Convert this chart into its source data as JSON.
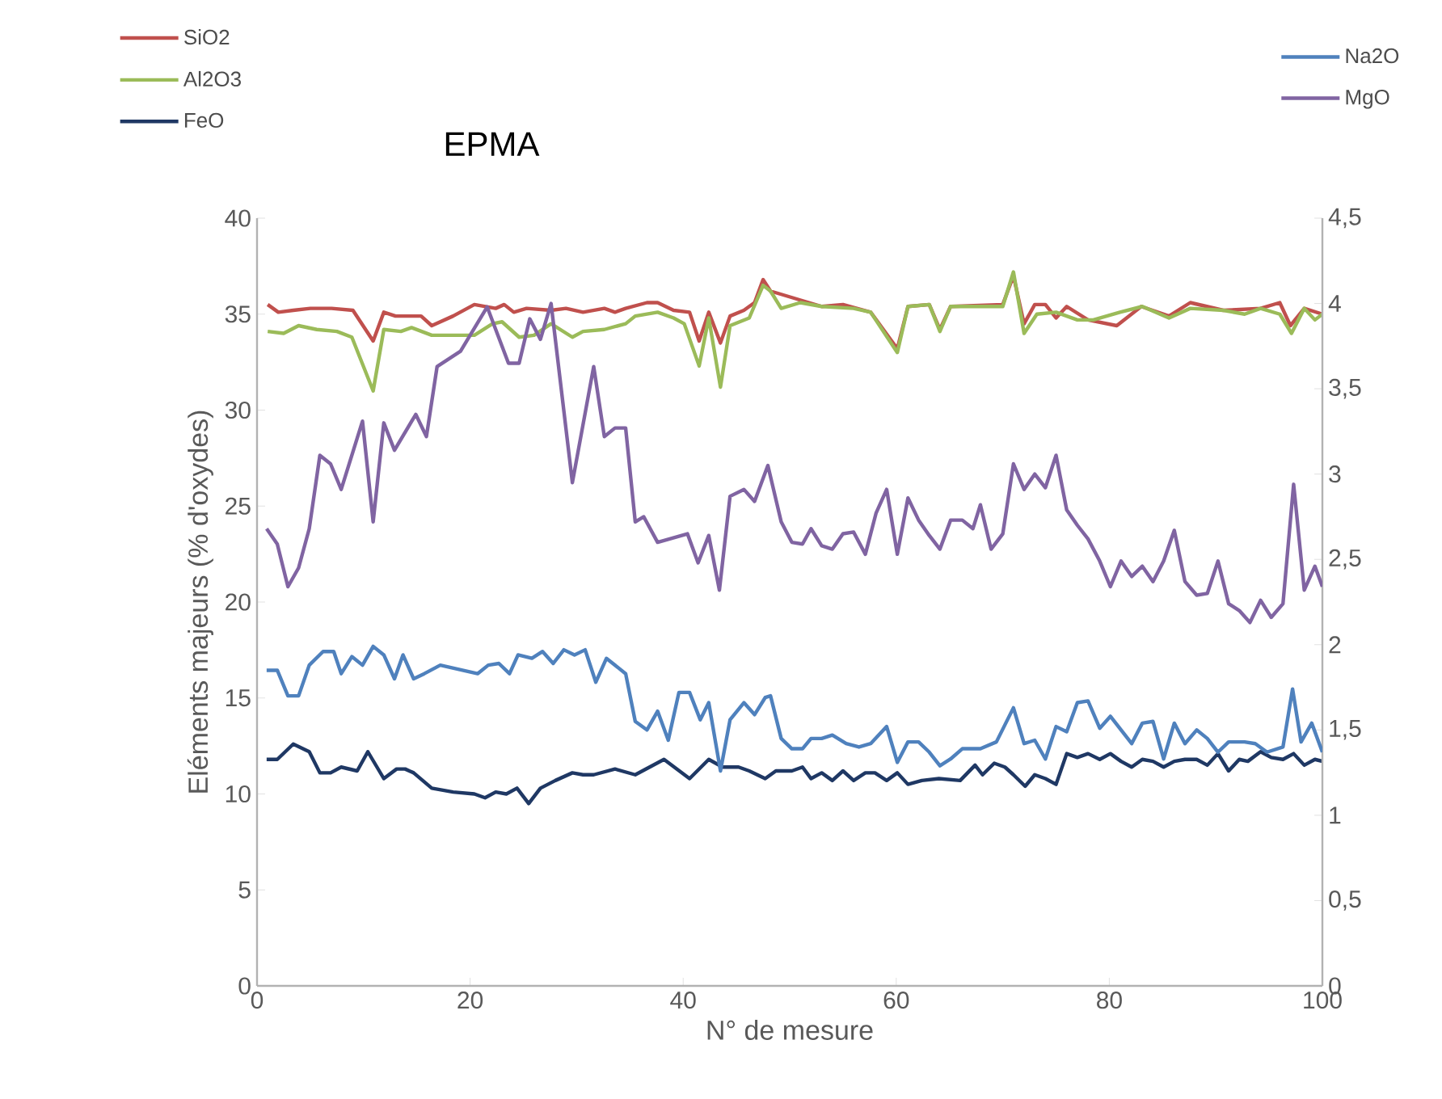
{
  "chart_data": {
    "type": "line",
    "title": "EPMA",
    "xlabel": "N° de mesure",
    "ylabel": "Eléments majeurs (% d'oxydes)",
    "xlim": [
      0,
      100
    ],
    "xticks": [
      0,
      20,
      40,
      60,
      80,
      100
    ],
    "ylim": [
      0,
      40
    ],
    "yticks": [
      0,
      5,
      10,
      15,
      20,
      25,
      30,
      35,
      40
    ],
    "y2lim": [
      0,
      4.5
    ],
    "y2ticks": [
      0,
      {
        "value": 0.5,
        "label": "0,5"
      },
      1,
      {
        "value": 1.5,
        "label": "1,5"
      },
      2,
      {
        "value": 2.5,
        "label": "2,5"
      },
      3,
      {
        "value": 3.5,
        "label": "3,5"
      },
      4,
      {
        "value": 4.5,
        "label": "4,5"
      }
    ],
    "legend": "top",
    "marker": "none",
    "line_style": "solid",
    "series": [
      {
        "name": "SiO2",
        "color": "#c0504d",
        "x": [
          1,
          2,
          3.4,
          5,
          7,
          9,
          10.9,
          11.9,
          13,
          15.4,
          16.4,
          18.4,
          20.4,
          22.4,
          23.2,
          24.1,
          25.3,
          27.6,
          29,
          30.6,
          32.6,
          33.6,
          34.6,
          36.6,
          37.6,
          39.1,
          40.6,
          41.5,
          42.4,
          43.5,
          44.4,
          45.7,
          46.7,
          47.5,
          48.2,
          53,
          55,
          57.6,
          60.1,
          61.1,
          63.1,
          64.1,
          65.1,
          70,
          71,
          72,
          73,
          74,
          75,
          76,
          78,
          80.7,
          83,
          85.6,
          87.6,
          90.7,
          94.2,
          96,
          97,
          98.3,
          100
        ],
        "values": [
          35.5,
          35.1,
          35.2,
          35.3,
          35.3,
          35.2,
          33.6,
          35.1,
          34.9,
          34.9,
          34.4,
          34.9,
          35.5,
          35.3,
          35.5,
          35.1,
          35.3,
          35.2,
          35.3,
          35.1,
          35.3,
          35.1,
          35.3,
          35.6,
          35.6,
          35.2,
          35.1,
          33.6,
          35.1,
          33.5,
          34.9,
          35.2,
          35.6,
          36.8,
          36.2,
          35.4,
          35.5,
          35.1,
          33.2,
          35.4,
          35.5,
          34.2,
          35.4,
          35.5,
          37.0,
          34.5,
          35.5,
          35.5,
          34.8,
          35.4,
          34.7,
          34.4,
          35.4,
          34.9,
          35.6,
          35.2,
          35.3,
          35.6,
          34.4,
          35.3,
          35.0
        ]
      },
      {
        "name": "Al2O3",
        "color": "#9bbb59",
        "x": [
          1,
          2.5,
          3.9,
          5.6,
          7.5,
          8.9,
          10.9,
          11.9,
          13.5,
          14.5,
          16.4,
          20.4,
          22.1,
          23,
          24.6,
          26,
          27.6,
          29.6,
          30.6,
          32.6,
          34.6,
          35.5,
          37.6,
          39.1,
          40.1,
          41.5,
          42.4,
          43.5,
          44.4,
          46.2,
          47.5,
          48.2,
          49.2,
          51,
          53,
          56,
          57.6,
          60.1,
          61.1,
          63.1,
          64.1,
          65.1,
          70,
          71,
          72,
          73.2,
          75,
          77,
          78.5,
          81,
          83.1,
          85.6,
          87.6,
          90.7,
          92.7,
          94.2,
          96,
          97.1,
          98.3,
          99.3,
          100
        ],
        "values": [
          34.1,
          34.0,
          34.4,
          34.2,
          34.1,
          33.8,
          31.0,
          34.2,
          34.1,
          34.3,
          33.9,
          33.9,
          34.5,
          34.6,
          33.8,
          33.9,
          34.5,
          33.8,
          34.1,
          34.2,
          34.5,
          34.9,
          35.1,
          34.8,
          34.5,
          32.3,
          34.8,
          31.2,
          34.4,
          34.8,
          36.5,
          36.2,
          35.3,
          35.6,
          35.4,
          35.3,
          35.1,
          33.0,
          35.4,
          35.5,
          34.1,
          35.4,
          35.4,
          37.2,
          34.0,
          35.0,
          35.1,
          34.7,
          34.7,
          35.1,
          35.4,
          34.8,
          35.3,
          35.2,
          35.0,
          35.3,
          35.0,
          34.0,
          35.3,
          34.7,
          35.0
        ]
      },
      {
        "name": "FeO",
        "color": "#1f3864",
        "x": [
          0.9,
          1.9,
          3.4,
          4.9,
          5.9,
          6.9,
          7.9,
          9.4,
          10.4,
          11.9,
          13.1,
          13.9,
          14.7,
          16.4,
          18.4,
          20.4,
          21.4,
          22.4,
          23.4,
          24.4,
          25.5,
          26.6,
          28,
          29.6,
          30.6,
          31.6,
          33.6,
          35.5,
          38.2,
          40.6,
          42.4,
          43.7,
          45.2,
          46.2,
          47.7,
          48.7,
          50.2,
          51.2,
          52,
          53,
          54,
          55,
          56,
          57.1,
          58,
          59.1,
          60.1,
          61.1,
          62.4,
          64,
          66,
          67.4,
          68.1,
          69.2,
          70.2,
          71,
          72.1,
          73,
          74,
          75,
          76,
          77,
          78,
          79.1,
          80.1,
          81.1,
          82.1,
          83.1,
          84.1,
          85.1,
          86.1,
          87.1,
          88.2,
          89.2,
          90.2,
          91.2,
          92.2,
          93,
          94.2,
          95.2,
          96.3,
          97.3,
          98.3,
          99.3,
          100
        ],
        "values": [
          11.8,
          11.8,
          12.6,
          12.2,
          11.1,
          11.1,
          11.4,
          11.2,
          12.2,
          10.8,
          11.3,
          11.3,
          11.1,
          10.3,
          10.1,
          10.0,
          9.8,
          10.1,
          10.0,
          10.3,
          9.5,
          10.3,
          10.7,
          11.1,
          11.0,
          11.0,
          11.3,
          11.0,
          11.8,
          10.8,
          11.8,
          11.4,
          11.4,
          11.2,
          10.8,
          11.2,
          11.2,
          11.4,
          10.8,
          11.1,
          10.7,
          11.2,
          10.7,
          11.1,
          11.1,
          10.7,
          11.1,
          10.5,
          10.7,
          10.8,
          10.7,
          11.5,
          11.0,
          11.6,
          11.4,
          11.0,
          10.4,
          11.0,
          10.8,
          10.5,
          12.1,
          11.9,
          12.1,
          11.8,
          12.1,
          11.7,
          11.4,
          11.8,
          11.7,
          11.4,
          11.7,
          11.8,
          11.8,
          11.5,
          12.1,
          11.2,
          11.8,
          11.7,
          12.2,
          11.9,
          11.8,
          12.1,
          11.5,
          11.8,
          11.7
        ]
      },
      {
        "name": "Na2O",
        "color": "#4f81bd",
        "axis": "y2",
        "x": [
          0.9,
          1.9,
          2.9,
          3.9,
          4.9,
          6.2,
          7.2,
          7.9,
          8.9,
          9.9,
          10.9,
          11.9,
          12.9,
          13.7,
          14.7,
          15.7,
          17.2,
          20.7,
          21.7,
          22.7,
          23.7,
          24.5,
          25.8,
          26.8,
          27.8,
          28.8,
          29.8,
          30.8,
          31.8,
          32.8,
          34.6,
          35.5,
          36.6,
          37.6,
          38.6,
          39.6,
          40.6,
          41.6,
          42.4,
          43.5,
          44.4,
          45.7,
          46.7,
          47.7,
          48.2,
          49.2,
          50.2,
          51.2,
          52,
          53,
          54,
          55.3,
          56.5,
          57.6,
          59.1,
          60.1,
          61.1,
          62.1,
          63.1,
          64.1,
          65.1,
          66.2,
          67.9,
          69.4,
          71,
          72,
          73,
          74,
          75,
          76,
          77,
          78,
          79.1,
          80.1,
          82.1,
          83.1,
          84.1,
          85.1,
          86.1,
          87.1,
          88.2,
          89.2,
          90.2,
          91.2,
          92.7,
          93.7,
          94.8,
          96.3,
          97.2,
          98,
          99,
          100
        ],
        "values": [
          1.85,
          1.85,
          1.7,
          1.7,
          1.88,
          1.96,
          1.96,
          1.83,
          1.93,
          1.88,
          1.99,
          1.94,
          1.8,
          1.94,
          1.8,
          1.83,
          1.88,
          1.83,
          1.88,
          1.89,
          1.83,
          1.94,
          1.92,
          1.96,
          1.89,
          1.97,
          1.94,
          1.97,
          1.78,
          1.92,
          1.83,
          1.55,
          1.5,
          1.61,
          1.44,
          1.72,
          1.72,
          1.56,
          1.66,
          1.26,
          1.56,
          1.66,
          1.59,
          1.69,
          1.7,
          1.45,
          1.39,
          1.39,
          1.45,
          1.45,
          1.47,
          1.42,
          1.4,
          1.42,
          1.52,
          1.31,
          1.43,
          1.43,
          1.37,
          1.29,
          1.33,
          1.39,
          1.39,
          1.43,
          1.63,
          1.42,
          1.44,
          1.33,
          1.52,
          1.49,
          1.66,
          1.67,
          1.51,
          1.58,
          1.42,
          1.54,
          1.55,
          1.33,
          1.54,
          1.42,
          1.5,
          1.45,
          1.37,
          1.43,
          1.43,
          1.42,
          1.37,
          1.4,
          1.74,
          1.43,
          1.54,
          1.37
        ]
      },
      {
        "name": "MgO",
        "color": "#8064a2",
        "axis": "y2",
        "x": [
          0.9,
          1.9,
          2.9,
          3.9,
          4.9,
          5.9,
          6.9,
          7.9,
          9.9,
          10.9,
          11.9,
          12.9,
          14.9,
          15.9,
          16.9,
          19.1,
          21.6,
          23.6,
          24.6,
          25.6,
          26.6,
          27.6,
          29.6,
          31.6,
          32.6,
          33.6,
          34.6,
          35.5,
          36.3,
          37.6,
          40.4,
          41.4,
          42.4,
          43.4,
          44.4,
          45.7,
          46.7,
          47.95,
          49.2,
          50.2,
          51.2,
          52,
          53,
          54,
          55,
          56,
          57.1,
          58.1,
          59.1,
          60.1,
          61.1,
          62.1,
          63.1,
          64.1,
          65.1,
          66.2,
          67.2,
          67.9,
          68.9,
          70,
          71,
          72,
          73,
          74,
          75,
          76,
          77,
          78,
          79.1,
          80.1,
          81.1,
          82.1,
          83.1,
          84.1,
          85.1,
          86.1,
          87.1,
          88.2,
          89.2,
          90.2,
          91.2,
          92.2,
          93.2,
          94.2,
          95.2,
          96.3,
          97.3,
          98.3,
          99.3,
          100
        ],
        "values": [
          2.68,
          2.59,
          2.34,
          2.45,
          2.68,
          3.11,
          3.06,
          2.91,
          3.31,
          2.72,
          3.3,
          3.14,
          3.35,
          3.22,
          3.63,
          3.72,
          3.98,
          3.65,
          3.65,
          3.91,
          3.79,
          4.0,
          2.95,
          3.63,
          3.22,
          3.27,
          3.27,
          2.72,
          2.75,
          2.6,
          2.65,
          2.48,
          2.64,
          2.32,
          2.87,
          2.91,
          2.84,
          3.05,
          2.72,
          2.6,
          2.59,
          2.68,
          2.58,
          2.56,
          2.65,
          2.66,
          2.53,
          2.77,
          2.91,
          2.53,
          2.86,
          2.73,
          2.64,
          2.56,
          2.73,
          2.73,
          2.68,
          2.82,
          2.56,
          2.65,
          3.06,
          2.91,
          3.0,
          2.92,
          3.11,
          2.79,
          2.7,
          2.62,
          2.49,
          2.34,
          2.49,
          2.4,
          2.46,
          2.37,
          2.49,
          2.67,
          2.37,
          2.29,
          2.3,
          2.49,
          2.24,
          2.2,
          2.13,
          2.26,
          2.16,
          2.24,
          2.94,
          2.32,
          2.46,
          2.34
        ]
      }
    ]
  }
}
